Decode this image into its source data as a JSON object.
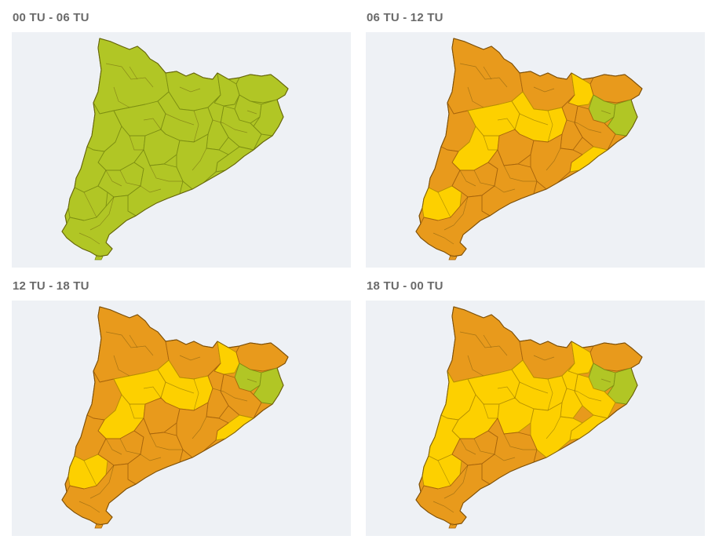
{
  "colors": {
    "green": "#b1c625",
    "green_edge": "#7d8f12",
    "orange": "#e89a1c",
    "orange_edge": "#a8650c",
    "yellow": "#fdd000",
    "yellow_edge": "#b89200",
    "map_background": "#eef1f5",
    "title_text": "#6a6a6a"
  },
  "panels": [
    {
      "title": "00 TU - 06 TU",
      "default_level": "green",
      "regions": {
        "pyrenees_west": "green",
        "pyrenees_mid": "green",
        "ripolles": "green",
        "garrotxa": "green",
        "alt_emporda": "green",
        "baix_emporda": "green",
        "plain_west": "green",
        "central_solsones": "green",
        "bages_east": "green",
        "selva_gironès": "green",
        "maresme_coast": "green",
        "vallès": "green",
        "anoia": "green",
        "segarra_urgell": "green",
        "lleida_plain": "green",
        "priorat": "green",
        "tarragona_coast": "green",
        "terra_alta": "green",
        "ebre_delta": "green",
        "barcelona_coast": "green"
      }
    },
    {
      "title": "06 TU - 12 TU",
      "default_level": "orange",
      "regions": {
        "pyrenees_west": "orange",
        "pyrenees_mid": "orange",
        "ripolles": "yellow",
        "garrotxa": "green",
        "alt_emporda": "orange",
        "baix_emporda": "green",
        "plain_west": "orange",
        "central_solsones": "yellow",
        "bages_east": "yellow",
        "selva_gironès": "orange",
        "maresme_coast": "yellow",
        "vallès": "orange",
        "anoia": "orange",
        "segarra_urgell": "yellow",
        "lleida_plain": "orange",
        "priorat": "orange",
        "tarragona_coast": "orange",
        "terra_alta": "yellow",
        "ebre_delta": "orange",
        "barcelona_coast": "orange"
      }
    },
    {
      "title": "12 TU - 18 TU",
      "default_level": "orange",
      "regions": {
        "pyrenees_west": "orange",
        "pyrenees_mid": "orange",
        "ripolles": "yellow",
        "garrotxa": "green",
        "alt_emporda": "orange",
        "baix_emporda": "green",
        "plain_west": "orange",
        "central_solsones": "yellow",
        "bages_east": "yellow",
        "selva_gironès": "orange",
        "maresme_coast": "yellow",
        "vallès": "orange",
        "anoia": "orange",
        "segarra_urgell": "yellow",
        "lleida_plain": "orange",
        "priorat": "orange",
        "tarragona_coast": "orange",
        "terra_alta": "yellow",
        "ebre_delta": "orange",
        "barcelona_coast": "orange"
      }
    },
    {
      "title": "18 TU - 00 TU",
      "default_level": "orange",
      "regions": {
        "pyrenees_west": "orange",
        "pyrenees_mid": "orange",
        "ripolles": "yellow",
        "garrotxa": "green",
        "alt_emporda": "orange",
        "baix_emporda": "green",
        "plain_west": "yellow",
        "central_solsones": "yellow",
        "bages_east": "yellow",
        "selva_gironès": "yellow",
        "maresme_coast": "yellow",
        "vallès": "yellow",
        "anoia": "yellow",
        "segarra_urgell": "yellow",
        "lleida_plain": "yellow",
        "priorat": "orange",
        "tarragona_coast": "orange",
        "terra_alta": "yellow",
        "ebre_delta": "orange",
        "barcelona_coast": "yellow"
      }
    }
  ]
}
